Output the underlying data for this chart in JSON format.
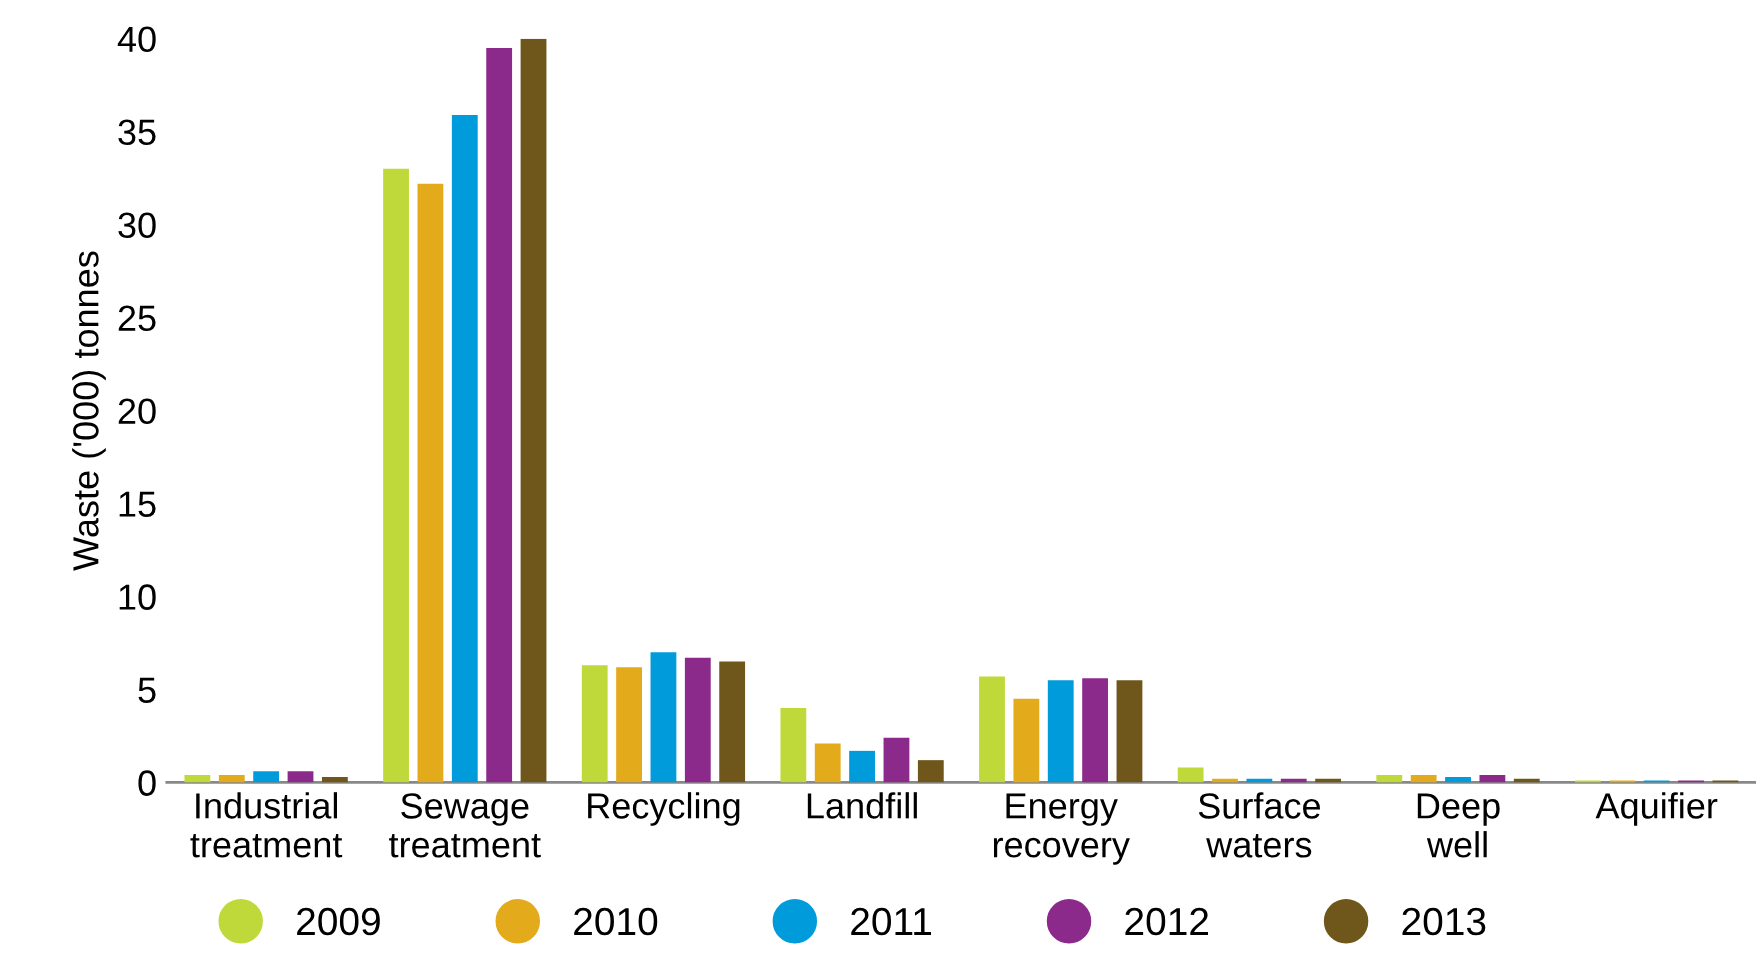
{
  "chart_data": {
    "type": "bar",
    "ylabel": "Waste ('000) tonnes",
    "categories": [
      "Industrial\ntreatment",
      "Sewage\ntreatment",
      "Recycling",
      "Landfill",
      "Energy\nrecovery",
      "Surface\nwaters",
      "Deep\nwell",
      "Aquifier"
    ],
    "series": [
      {
        "name": "2009",
        "color": "#c0d93a",
        "values": [
          0.4,
          33.0,
          6.3,
          4.0,
          5.7,
          0.8,
          0.4,
          0.1
        ]
      },
      {
        "name": "2010",
        "color": "#e3ab1b",
        "values": [
          0.4,
          32.2,
          6.2,
          2.1,
          4.5,
          0.2,
          0.4,
          0.1
        ]
      },
      {
        "name": "2011",
        "color": "#009bdb",
        "values": [
          0.6,
          35.9,
          7.0,
          1.7,
          5.5,
          0.2,
          0.3,
          0.1
        ]
      },
      {
        "name": "2012",
        "color": "#8c2a8c",
        "values": [
          0.6,
          39.5,
          6.7,
          2.4,
          5.6,
          0.2,
          0.4,
          0.1
        ]
      },
      {
        "name": "2013",
        "color": "#6f571b",
        "values": [
          0.3,
          40.0,
          6.5,
          1.2,
          5.5,
          0.2,
          0.2,
          0.1
        ]
      }
    ],
    "ylim": [
      0,
      40
    ],
    "yticks": [
      0,
      5,
      10,
      15,
      20,
      25,
      30,
      35,
      40
    ],
    "grid": false,
    "legend": "bottom"
  }
}
